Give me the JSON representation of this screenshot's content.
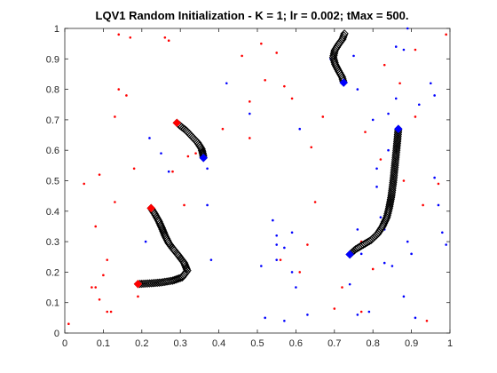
{
  "chart_data": {
    "type": "scatter",
    "title": "LQV1 Random Initialization - K = 1; lr = 0.002; tMax = 500.",
    "xlabel": "",
    "ylabel": "",
    "xlim": [
      0,
      1
    ],
    "ylim": [
      0,
      1
    ],
    "xticks": [
      0,
      0.1,
      0.2,
      0.3,
      0.4,
      0.5,
      0.6,
      0.7,
      0.8,
      0.9,
      1
    ],
    "yticks": [
      0,
      0.1,
      0.2,
      0.3,
      0.4,
      0.5,
      0.6,
      0.7,
      0.8,
      0.9,
      1
    ],
    "xtick_labels": [
      "0",
      "0.1",
      "0.2",
      "0.3",
      "0.4",
      "0.5",
      "0.6",
      "0.7",
      "0.8",
      "0.9",
      "1"
    ],
    "ytick_labels": [
      "0",
      "0.1",
      "0.2",
      "0.3",
      "0.4",
      "0.5",
      "0.6",
      "0.7",
      "0.8",
      "0.9",
      "1"
    ],
    "grid": false,
    "colors": {
      "class_red": "#ff0000",
      "class_blue": "#0000ff",
      "trajectory": "#000000",
      "prototype_red": "#ff0000",
      "prototype_blue": "#0000ff"
    },
    "series": [
      {
        "class": "red-data",
        "points": [
          [
            0.01,
            0.03
          ],
          [
            0.05,
            0.49
          ],
          [
            0.07,
            0.15
          ],
          [
            0.08,
            0.15
          ],
          [
            0.08,
            0.35
          ],
          [
            0.09,
            0.11
          ],
          [
            0.09,
            0.52
          ],
          [
            0.1,
            0.19
          ],
          [
            0.11,
            0.24
          ],
          [
            0.11,
            0.07
          ],
          [
            0.12,
            0.07
          ],
          [
            0.13,
            0.43
          ],
          [
            0.13,
            0.71
          ],
          [
            0.14,
            0.98
          ],
          [
            0.14,
            0.8
          ],
          [
            0.16,
            0.78
          ],
          [
            0.17,
            0.97
          ],
          [
            0.18,
            0.54
          ],
          [
            0.19,
            0.12
          ],
          [
            0.2,
            0.17
          ],
          [
            0.26,
            0.97
          ],
          [
            0.27,
            0.96
          ],
          [
            0.28,
            0.53
          ],
          [
            0.31,
            0.42
          ],
          [
            0.32,
            0.58
          ],
          [
            0.34,
            0.59
          ],
          [
            0.36,
            0.6
          ],
          [
            0.41,
            0.67
          ],
          [
            0.46,
            0.91
          ],
          [
            0.48,
            0.76
          ],
          [
            0.48,
            0.64
          ],
          [
            0.51,
            0.95
          ],
          [
            0.52,
            0.83
          ],
          [
            0.55,
            0.92
          ],
          [
            0.56,
            0.24
          ],
          [
            0.57,
            0.81
          ],
          [
            0.59,
            0.77
          ],
          [
            0.61,
            0.2
          ],
          [
            0.63,
            0.29
          ],
          [
            0.64,
            0.61
          ],
          [
            0.65,
            0.43
          ],
          [
            0.67,
            0.71
          ],
          [
            0.7,
            0.08
          ],
          [
            0.72,
            0.15
          ],
          [
            0.77,
            0.07
          ],
          [
            0.77,
            0.3
          ],
          [
            0.78,
            0.66
          ],
          [
            0.8,
            0.21
          ],
          [
            0.82,
            0.57
          ],
          [
            0.83,
            0.88
          ],
          [
            0.87,
            0.82
          ],
          [
            0.88,
            0.5
          ],
          [
            0.91,
            0.71
          ],
          [
            0.91,
            0.93
          ],
          [
            0.93,
            0.42
          ],
          [
            0.94,
            0.04
          ],
          [
            0.97,
            0.49
          ],
          [
            0.99,
            0.98
          ]
        ]
      },
      {
        "class": "blue-data",
        "points": [
          [
            0.21,
            0.3
          ],
          [
            0.22,
            0.64
          ],
          [
            0.25,
            0.59
          ],
          [
            0.27,
            0.53
          ],
          [
            0.37,
            0.42
          ],
          [
            0.37,
            0.54
          ],
          [
            0.42,
            0.82
          ],
          [
            0.48,
            0.72
          ],
          [
            0.51,
            0.22
          ],
          [
            0.52,
            0.05
          ],
          [
            0.54,
            0.37
          ],
          [
            0.55,
            0.24
          ],
          [
            0.55,
            0.32
          ],
          [
            0.57,
            0.28
          ],
          [
            0.57,
            0.04
          ],
          [
            0.59,
            0.33
          ],
          [
            0.59,
            0.2
          ],
          [
            0.6,
            0.15
          ],
          [
            0.61,
            0.67
          ],
          [
            0.63,
            0.06
          ],
          [
            0.69,
            0.9
          ],
          [
            0.74,
            0.16
          ],
          [
            0.75,
            0.91
          ],
          [
            0.76,
            0.8
          ],
          [
            0.76,
            0.34
          ],
          [
            0.76,
            0.06
          ],
          [
            0.77,
            0.26
          ],
          [
            0.79,
            0.07
          ],
          [
            0.8,
            0.7
          ],
          [
            0.81,
            0.48
          ],
          [
            0.81,
            0.54
          ],
          [
            0.82,
            0.38
          ],
          [
            0.83,
            0.34
          ],
          [
            0.83,
            0.23
          ],
          [
            0.84,
            0.6
          ],
          [
            0.84,
            0.72
          ],
          [
            0.85,
            0.22
          ],
          [
            0.86,
            0.94
          ],
          [
            0.86,
            0.77
          ],
          [
            0.88,
            0.12
          ],
          [
            0.88,
            0.93
          ],
          [
            0.89,
            1.0
          ],
          [
            0.89,
            0.3
          ],
          [
            0.9,
            0.26
          ],
          [
            0.91,
            0.05
          ],
          [
            0.92,
            0.75
          ],
          [
            0.95,
            0.82
          ],
          [
            0.96,
            0.78
          ],
          [
            0.96,
            0.51
          ],
          [
            0.97,
            0.42
          ],
          [
            0.98,
            0.33
          ],
          [
            0.99,
            0.29
          ],
          [
            0.55,
            0.29
          ],
          [
            0.38,
            0.24
          ]
        ]
      },
      {
        "class": "trajectory-1",
        "points": [
          [
            0.19,
            0.161
          ],
          [
            0.22,
            0.163
          ],
          [
            0.25,
            0.166
          ],
          [
            0.28,
            0.172
          ],
          [
            0.305,
            0.183
          ],
          [
            0.318,
            0.205
          ],
          [
            0.31,
            0.23
          ],
          [
            0.295,
            0.255
          ],
          [
            0.282,
            0.275
          ],
          [
            0.27,
            0.295
          ],
          [
            0.26,
            0.32
          ],
          [
            0.252,
            0.345
          ],
          [
            0.243,
            0.37
          ],
          [
            0.233,
            0.392
          ],
          [
            0.224,
            0.41
          ]
        ]
      },
      {
        "class": "trajectory-2",
        "points": [
          [
            0.291,
            0.69
          ],
          [
            0.3,
            0.68
          ],
          [
            0.315,
            0.665
          ],
          [
            0.33,
            0.645
          ],
          [
            0.345,
            0.625
          ],
          [
            0.355,
            0.605
          ],
          [
            0.359,
            0.585
          ],
          [
            0.36,
            0.575
          ]
        ]
      },
      {
        "class": "trajectory-3",
        "points": [
          [
            0.724,
            0.822
          ],
          [
            0.72,
            0.84
          ],
          [
            0.711,
            0.86
          ],
          [
            0.702,
            0.882
          ],
          [
            0.697,
            0.905
          ],
          [
            0.701,
            0.928
          ],
          [
            0.711,
            0.948
          ],
          [
            0.721,
            0.965
          ],
          [
            0.726,
            0.983
          ]
        ]
      },
      {
        "class": "trajectory-4",
        "points": [
          [
            0.74,
            0.258
          ],
          [
            0.755,
            0.275
          ],
          [
            0.775,
            0.29
          ],
          [
            0.795,
            0.305
          ],
          [
            0.812,
            0.325
          ],
          [
            0.825,
            0.35
          ],
          [
            0.836,
            0.38
          ],
          [
            0.842,
            0.41
          ],
          [
            0.848,
            0.45
          ],
          [
            0.853,
            0.5
          ],
          [
            0.857,
            0.55
          ],
          [
            0.861,
            0.6
          ],
          [
            0.864,
            0.64
          ],
          [
            0.866,
            0.67
          ]
        ]
      },
      {
        "class": "prototype-red",
        "points": [
          [
            0.19,
            0.161
          ],
          [
            0.291,
            0.69
          ],
          [
            0.224,
            0.41
          ]
        ]
      },
      {
        "class": "prototype-blue",
        "points": [
          [
            0.724,
            0.822
          ],
          [
            0.74,
            0.258
          ],
          [
            0.36,
            0.575
          ],
          [
            0.866,
            0.67
          ]
        ]
      }
    ]
  }
}
